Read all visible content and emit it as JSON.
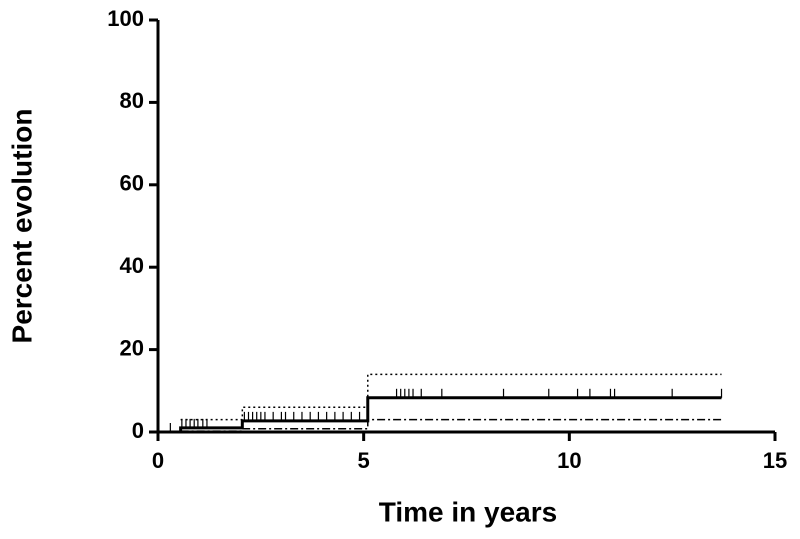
{
  "chart_data": {
    "type": "step",
    "xlabel": "Time in years",
    "ylabel": "Percent evolution",
    "xlim": [
      0,
      15
    ],
    "ylim": [
      0,
      100
    ],
    "xticks": [
      0,
      5,
      10,
      15
    ],
    "yticks": [
      0,
      20,
      40,
      60,
      80,
      100
    ],
    "series": [
      {
        "color": "#000000",
        "style": "solid",
        "width": 3,
        "x": [
          0,
          0.55,
          2.05,
          5.1,
          13.7
        ],
        "values": [
          0,
          1,
          2.7,
          8.3,
          8.3
        ]
      },
      {
        "color": "#000000",
        "style": "dotted",
        "width": 1.5,
        "x": [
          0.55,
          2.05,
          5.1,
          13.7
        ],
        "values": [
          3,
          6,
          14,
          14
        ]
      },
      {
        "color": "#000000",
        "style": "dashdot",
        "width": 1.5,
        "x": [
          0.55,
          2.05,
          5.1,
          13.7
        ],
        "values": [
          0.2,
          0.8,
          3,
          3
        ]
      }
    ],
    "censored": {
      "color": "#000000",
      "x": [
        0.3,
        0.58,
        0.68,
        0.78,
        0.88,
        0.97,
        1.09,
        1.19,
        2.1,
        2.2,
        2.3,
        2.4,
        2.5,
        2.6,
        2.8,
        3.0,
        3.1,
        3.3,
        3.5,
        3.7,
        3.9,
        4.1,
        4.3,
        4.5,
        4.7,
        4.9,
        5.8,
        5.9,
        6.0,
        6.1,
        6.2,
        6.4,
        6.9,
        8.4,
        9.5,
        10.2,
        10.5,
        11.0,
        11.1,
        12.5,
        13.7
      ],
      "values": [
        0,
        1,
        1,
        1,
        1,
        1,
        1,
        1,
        2.7,
        2.7,
        2.7,
        2.7,
        2.7,
        2.7,
        2.7,
        2.7,
        2.7,
        2.7,
        2.7,
        2.7,
        2.7,
        2.7,
        2.7,
        2.7,
        2.7,
        2.7,
        8.3,
        8.3,
        8.3,
        8.3,
        8.3,
        8.3,
        8.3,
        8.3,
        8.3,
        8.3,
        8.3,
        8.3,
        8.3,
        8.3,
        8.3
      ]
    }
  }
}
